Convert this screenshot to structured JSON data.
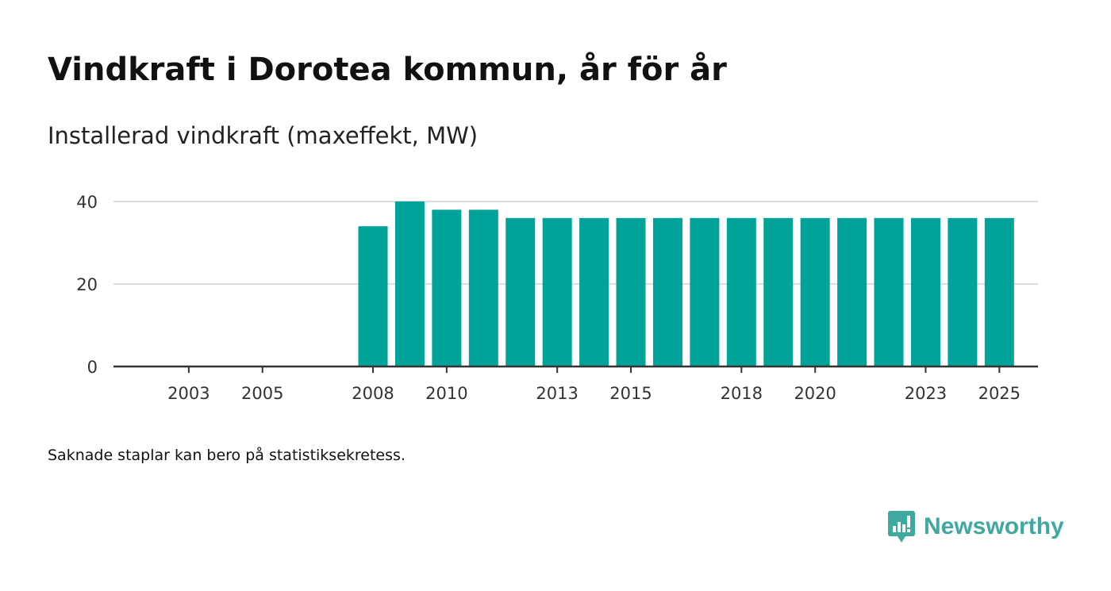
{
  "title": "Vindkraft i Dorotea kommun, år för år",
  "subtitle": "Installerad vindkraft (maxeffekt, MW)",
  "footnote": "Saknade staplar kan bero på statistiksekretess.",
  "brand": {
    "name": "Newsworthy",
    "icon": "newsworthy-logo-icon"
  },
  "colors": {
    "bar": "#00a39a",
    "grid": "#dddddd",
    "axis": "#333333",
    "brand": "#3fa9a0"
  },
  "chart_data": {
    "type": "bar",
    "title": "Vindkraft i Dorotea kommun, år för år",
    "subtitle": "Installerad vindkraft (maxeffekt, MW)",
    "xlabel": "",
    "ylabel": "MW",
    "x_range": [
      2001,
      2026
    ],
    "ylim": [
      0,
      40
    ],
    "yticks": [
      0,
      20,
      40
    ],
    "xticks": [
      2003,
      2005,
      2008,
      2010,
      2013,
      2015,
      2018,
      2020,
      2023,
      2025
    ],
    "grid": true,
    "categories": [
      2008,
      2009,
      2010,
      2011,
      2012,
      2013,
      2014,
      2015,
      2016,
      2017,
      2018,
      2019,
      2020,
      2021,
      2022,
      2023,
      2024,
      2025
    ],
    "values": [
      34,
      40,
      38,
      38,
      36,
      36,
      36,
      36,
      36,
      36,
      36,
      36,
      36,
      36,
      36,
      36,
      36,
      36
    ]
  }
}
